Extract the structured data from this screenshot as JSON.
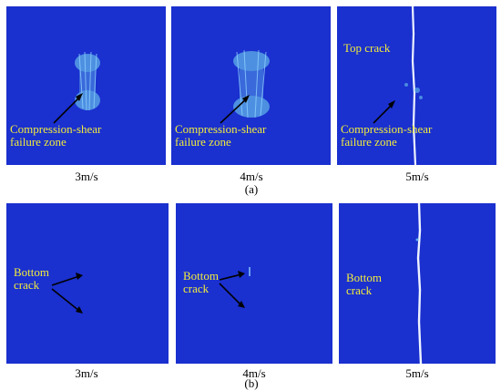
{
  "row_a": {
    "panels": [
      {
        "speed": "3m/s",
        "annotation": [
          "Compression-shear",
          "failure zone"
        ]
      },
      {
        "speed": "4m/s",
        "annotation": [
          "Compression-shear",
          "failure zone"
        ]
      },
      {
        "speed": "5m/s",
        "top_label": "Top crack",
        "annotation": [
          "Compression-shear",
          "failure zone"
        ]
      }
    ],
    "caption": "(a)"
  },
  "row_b": {
    "panels": [
      {
        "speed": "3m/s",
        "annotation": [
          "Bottom",
          "crack"
        ]
      },
      {
        "speed": "4m/s",
        "annotation": [
          "Bottom",
          "crack"
        ]
      },
      {
        "speed": "5m/s",
        "annotation": [
          "Bottom",
          "crack"
        ]
      }
    ],
    "caption": "(b)"
  },
  "colors": {
    "panel": "#1a30cf",
    "annotation": "#f2ec3c",
    "damage": "#5fb0e8"
  }
}
